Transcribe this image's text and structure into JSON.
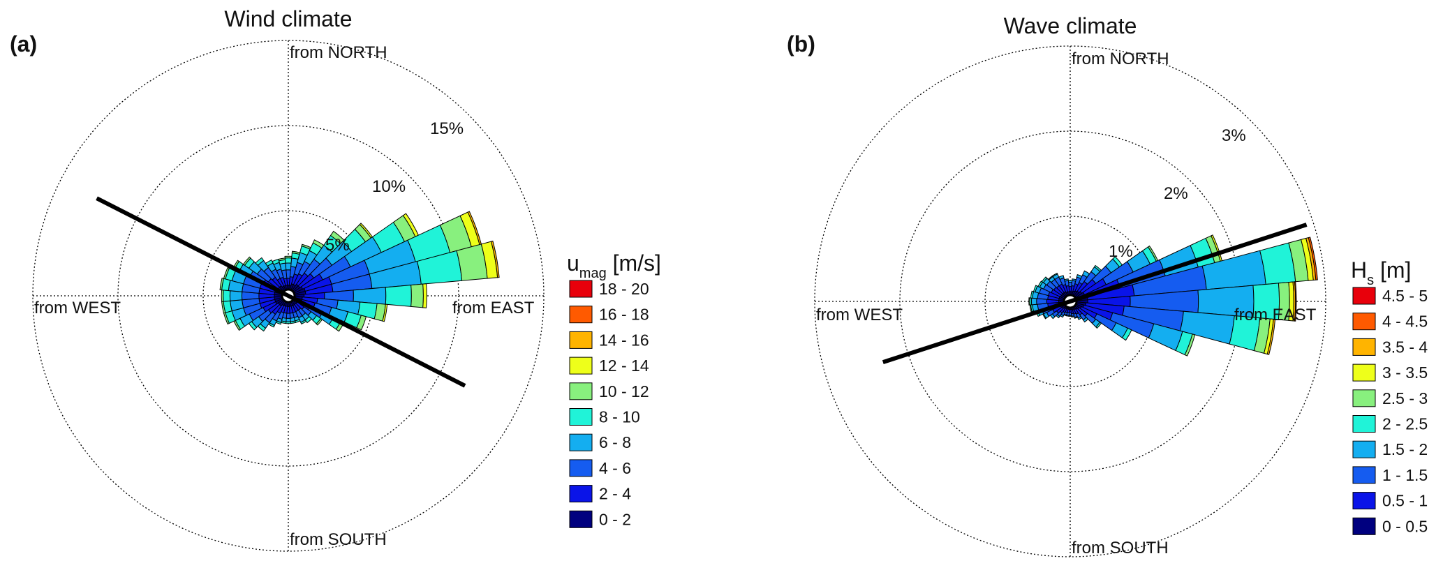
{
  "chart_data": [
    {
      "type": "windrose",
      "panel_label": "(a)",
      "title": "Wind climate",
      "direction_labels": {
        "north": "from NORTH",
        "south": "from SOUTH",
        "east": "from EAST",
        "west": "from WEST"
      },
      "ring_labels": [
        "5%",
        "10%",
        "15%"
      ],
      "ring_values": [
        5,
        10,
        15
      ],
      "rmax": 15,
      "legend": {
        "title": "u",
        "title_sub": "mag",
        "title_unit": " [m/s]",
        "bins": [
          {
            "label": "18 - 20",
            "color": "#e8000b"
          },
          {
            "label": "16 - 18",
            "color": "#ff5a00"
          },
          {
            "label": "14 - 16",
            "color": "#ffb400"
          },
          {
            "label": "12 - 14",
            "color": "#eeff1a"
          },
          {
            "label": "10 - 12",
            "color": "#88f07e"
          },
          {
            "label": "8 - 10",
            "color": "#20f3d8"
          },
          {
            "label": "6 - 8",
            "color": "#14aef0"
          },
          {
            "label": "4 - 6",
            "color": "#155cf0"
          },
          {
            "label": "2 - 4",
            "color": "#0a14e8"
          },
          {
            "label": "0 - 2",
            "color": "#00007f"
          }
        ]
      },
      "bin_width_deg": 10,
      "bins_order": "low to high speed",
      "sectors": [
        {
          "dir": 0,
          "values": [
            0.3,
            0.4,
            0.5,
            0.4,
            0.3,
            0.1
          ]
        },
        {
          "dir": 10,
          "values": [
            0.3,
            0.5,
            0.6,
            0.5,
            0.3,
            0.1
          ]
        },
        {
          "dir": 20,
          "values": [
            0.4,
            0.6,
            0.7,
            0.6,
            0.4,
            0.1
          ]
        },
        {
          "dir": 30,
          "values": [
            0.4,
            0.7,
            0.8,
            0.7,
            0.5,
            0.2
          ]
        },
        {
          "dir": 40,
          "values": [
            0.5,
            0.8,
            1.0,
            1.0,
            0.7,
            0.3
          ]
        },
        {
          "dir": 50,
          "values": [
            0.5,
            1.0,
            1.3,
            1.4,
            1.0,
            0.4,
            0.1
          ]
        },
        {
          "dir": 60,
          "values": [
            0.6,
            1.3,
            1.8,
            2.0,
            1.5,
            0.7,
            0.2
          ]
        },
        {
          "dir": 70,
          "values": [
            0.7,
            1.6,
            2.3,
            2.8,
            2.1,
            1.3,
            0.5,
            0.1
          ]
        },
        {
          "dir": 80,
          "values": [
            0.7,
            1.6,
            2.3,
            2.9,
            2.4,
            1.5,
            0.6,
            0.1
          ]
        },
        {
          "dir": 90,
          "values": [
            0.6,
            1.2,
            1.7,
            1.9,
            1.5,
            0.7,
            0.2
          ]
        },
        {
          "dir": 100,
          "values": [
            0.5,
            0.9,
            1.2,
            1.3,
            1.0,
            0.5,
            0.1
          ]
        },
        {
          "dir": 110,
          "values": [
            0.5,
            0.8,
            1.0,
            1.0,
            0.8,
            0.3
          ]
        },
        {
          "dir": 120,
          "values": [
            0.4,
            0.7,
            0.8,
            0.7,
            0.5,
            0.2
          ]
        },
        {
          "dir": 130,
          "values": [
            0.3,
            0.5,
            0.5,
            0.4,
            0.3,
            0.1
          ]
        },
        {
          "dir": 140,
          "values": [
            0.3,
            0.4,
            0.4,
            0.3,
            0.2
          ]
        },
        {
          "dir": 150,
          "values": [
            0.3,
            0.4,
            0.4,
            0.3,
            0.1
          ]
        },
        {
          "dir": 160,
          "values": [
            0.3,
            0.4,
            0.3,
            0.2,
            0.1
          ]
        },
        {
          "dir": 170,
          "values": [
            0.3,
            0.4,
            0.3,
            0.2,
            0.1
          ]
        },
        {
          "dir": 180,
          "values": [
            0.3,
            0.4,
            0.3,
            0.2,
            0.1
          ]
        },
        {
          "dir": 190,
          "values": [
            0.3,
            0.4,
            0.3,
            0.2,
            0.1
          ]
        },
        {
          "dir": 200,
          "values": [
            0.3,
            0.4,
            0.4,
            0.2,
            0.1
          ]
        },
        {
          "dir": 210,
          "values": [
            0.3,
            0.5,
            0.5,
            0.3,
            0.1
          ]
        },
        {
          "dir": 220,
          "values": [
            0.4,
            0.6,
            0.6,
            0.4,
            0.2
          ]
        },
        {
          "dir": 230,
          "values": [
            0.4,
            0.7,
            0.7,
            0.5,
            0.2
          ]
        },
        {
          "dir": 240,
          "values": [
            0.5,
            0.8,
            0.9,
            0.6,
            0.3,
            0.1
          ]
        },
        {
          "dir": 250,
          "values": [
            0.5,
            0.9,
            1.0,
            0.7,
            0.4,
            0.1
          ]
        },
        {
          "dir": 260,
          "values": [
            0.5,
            0.9,
            1.0,
            0.7,
            0.4,
            0.1
          ]
        },
        {
          "dir": 270,
          "values": [
            0.5,
            0.9,
            1.0,
            0.7,
            0.4,
            0.1
          ]
        },
        {
          "dir": 280,
          "values": [
            0.5,
            0.9,
            1.0,
            0.8,
            0.4,
            0.1
          ]
        },
        {
          "dir": 290,
          "values": [
            0.5,
            0.9,
            1.0,
            0.7,
            0.4,
            0.1
          ]
        },
        {
          "dir": 300,
          "values": [
            0.5,
            0.8,
            0.9,
            0.7,
            0.3,
            0.1
          ]
        },
        {
          "dir": 310,
          "values": [
            0.4,
            0.7,
            0.8,
            0.6,
            0.3,
            0.1
          ]
        },
        {
          "dir": 320,
          "values": [
            0.4,
            0.6,
            0.7,
            0.5,
            0.2
          ]
        },
        {
          "dir": 330,
          "values": [
            0.3,
            0.5,
            0.6,
            0.4,
            0.2
          ]
        },
        {
          "dir": 340,
          "values": [
            0.3,
            0.5,
            0.5,
            0.4,
            0.2
          ]
        },
        {
          "dir": 350,
          "values": [
            0.3,
            0.4,
            0.5,
            0.4,
            0.2,
            0.1
          ]
        }
      ],
      "axis_line_bearing_deg": 117
    },
    {
      "type": "windrose",
      "panel_label": "(b)",
      "title": "Wave climate",
      "direction_labels": {
        "north": "from NORTH",
        "south": "from SOUTH",
        "east": "from EAST",
        "west": "from WEST"
      },
      "ring_labels": [
        "1%",
        "2%",
        "3%"
      ],
      "ring_values": [
        1,
        2,
        3
      ],
      "rmax": 3,
      "legend": {
        "title": "H",
        "title_sub": "s",
        "title_unit": " [m]",
        "bins": [
          {
            "label": "4.5 - 5",
            "color": "#e8000b"
          },
          {
            "label": "4 - 4.5",
            "color": "#ff5a00"
          },
          {
            "label": "3.5 - 4",
            "color": "#ffb400"
          },
          {
            "label": "3 - 3.5",
            "color": "#eeff1a"
          },
          {
            "label": "2.5 - 3",
            "color": "#88f07e"
          },
          {
            "label": "2 - 2.5",
            "color": "#20f3d8"
          },
          {
            "label": "1.5 - 2",
            "color": "#14aef0"
          },
          {
            "label": "1 - 1.5",
            "color": "#155cf0"
          },
          {
            "label": "0.5 - 1",
            "color": "#0a14e8"
          },
          {
            "label": "0 - 0.5",
            "color": "#00007f"
          }
        ]
      },
      "bin_width_deg": 10,
      "bins_order": "low to high height",
      "sectors": [
        {
          "dir": 0,
          "values": [
            0.05,
            0.06,
            0.05,
            0.02
          ]
        },
        {
          "dir": 10,
          "values": [
            0.05,
            0.07,
            0.06,
            0.02
          ]
        },
        {
          "dir": 20,
          "values": [
            0.06,
            0.09,
            0.08,
            0.03
          ]
        },
        {
          "dir": 30,
          "values": [
            0.07,
            0.11,
            0.1,
            0.05
          ]
        },
        {
          "dir": 40,
          "values": [
            0.08,
            0.14,
            0.14,
            0.07,
            0.02
          ]
        },
        {
          "dir": 50,
          "values": [
            0.1,
            0.2,
            0.22,
            0.12,
            0.04
          ]
        },
        {
          "dir": 60,
          "values": [
            0.12,
            0.28,
            0.35,
            0.22,
            0.08,
            0.02
          ]
        },
        {
          "dir": 70,
          "values": [
            0.14,
            0.4,
            0.55,
            0.4,
            0.2,
            0.07,
            0.02
          ]
        },
        {
          "dir": 80,
          "values": [
            0.14,
            0.55,
            0.85,
            0.7,
            0.35,
            0.15,
            0.06,
            0.03,
            0.02
          ]
        },
        {
          "dir": 90,
          "values": [
            0.14,
            0.5,
            0.8,
            0.65,
            0.3,
            0.12,
            0.05,
            0.02,
            0.01
          ]
        },
        {
          "dir": 100,
          "values": [
            0.12,
            0.45,
            0.7,
            0.6,
            0.3,
            0.12,
            0.04,
            0.02
          ]
        },
        {
          "dir": 110,
          "values": [
            0.1,
            0.35,
            0.5,
            0.35,
            0.12,
            0.03
          ]
        },
        {
          "dir": 120,
          "values": [
            0.08,
            0.2,
            0.25,
            0.15,
            0.05
          ]
        },
        {
          "dir": 130,
          "values": [
            0.06,
            0.12,
            0.12,
            0.06,
            0.02
          ]
        },
        {
          "dir": 140,
          "values": [
            0.05,
            0.08,
            0.07,
            0.03
          ]
        },
        {
          "dir": 150,
          "values": [
            0.04,
            0.06,
            0.05,
            0.02
          ]
        },
        {
          "dir": 160,
          "values": [
            0.04,
            0.05,
            0.04,
            0.01
          ]
        },
        {
          "dir": 170,
          "values": [
            0.03,
            0.05,
            0.03,
            0.01
          ]
        },
        {
          "dir": 180,
          "values": [
            0.03,
            0.04,
            0.03,
            0.01
          ]
        },
        {
          "dir": 190,
          "values": [
            0.03,
            0.04,
            0.03,
            0.01
          ]
        },
        {
          "dir": 200,
          "values": [
            0.03,
            0.04,
            0.03,
            0.01
          ]
        },
        {
          "dir": 210,
          "values": [
            0.03,
            0.05,
            0.04,
            0.02
          ]
        },
        {
          "dir": 220,
          "values": [
            0.04,
            0.06,
            0.05,
            0.02
          ]
        },
        {
          "dir": 230,
          "values": [
            0.05,
            0.08,
            0.06,
            0.03
          ]
        },
        {
          "dir": 240,
          "values": [
            0.06,
            0.1,
            0.08,
            0.04,
            0.01
          ]
        },
        {
          "dir": 250,
          "values": [
            0.06,
            0.12,
            0.1,
            0.05,
            0.02
          ]
        },
        {
          "dir": 260,
          "values": [
            0.07,
            0.13,
            0.12,
            0.06,
            0.02,
            0.01
          ]
        },
        {
          "dir": 270,
          "values": [
            0.07,
            0.14,
            0.12,
            0.06,
            0.02,
            0.01
          ]
        },
        {
          "dir": 280,
          "values": [
            0.07,
            0.13,
            0.12,
            0.06,
            0.02
          ]
        },
        {
          "dir": 290,
          "values": [
            0.07,
            0.13,
            0.11,
            0.05,
            0.02
          ]
        },
        {
          "dir": 300,
          "values": [
            0.06,
            0.12,
            0.1,
            0.05,
            0.02
          ]
        },
        {
          "dir": 310,
          "values": [
            0.06,
            0.11,
            0.1,
            0.05,
            0.02
          ]
        },
        {
          "dir": 320,
          "values": [
            0.06,
            0.1,
            0.09,
            0.04,
            0.01
          ]
        },
        {
          "dir": 330,
          "values": [
            0.06,
            0.1,
            0.09,
            0.04,
            0.01
          ]
        },
        {
          "dir": 340,
          "values": [
            0.05,
            0.09,
            0.08,
            0.03
          ]
        },
        {
          "dir": 350,
          "values": [
            0.05,
            0.07,
            0.06,
            0.02
          ]
        }
      ],
      "axis_line_bearing_deg": 72
    }
  ]
}
